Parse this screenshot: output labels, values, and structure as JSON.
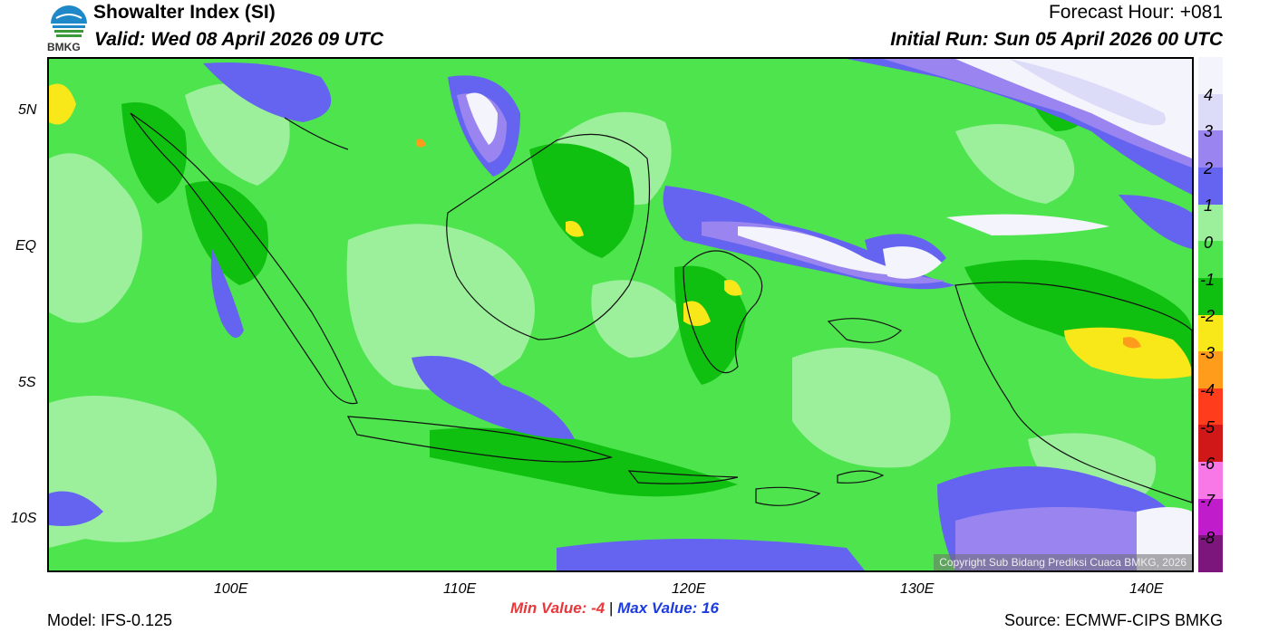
{
  "header": {
    "title": "Showalter Index (SI)",
    "valid": "Valid: Wed 08 April 2026 09 UTC",
    "forecast_hour": "Forecast Hour: +081",
    "initial_run": "Initial Run: Sun 05 April 2026 00 UTC",
    "logo_text": "BMKG"
  },
  "footer": {
    "model": "Model: IFS-0.125",
    "source": "Source: ECMWF-CIPS BMKG",
    "min_value": "Min Value:  -4",
    "separator": "|",
    "max_value": "Max Value:  16",
    "copyright": "Copyright Sub Bidang Prediksi Cuaca BMKG, 2026"
  },
  "axes": {
    "lat_labels": [
      "5N",
      "EQ",
      "5S",
      "10S"
    ],
    "lon_labels": [
      "100E",
      "110E",
      "120E",
      "130E",
      "140E"
    ]
  },
  "legend": {
    "labels": [
      "4",
      "3",
      "2",
      "1",
      "0",
      "-1",
      "-2",
      "-3",
      "-4",
      "-5",
      "-6",
      "-7",
      "-8"
    ],
    "colors": [
      "#f4f4fc",
      "#dcdcf8",
      "#9a84f0",
      "#6464f0",
      "#9cf09c",
      "#4ee44e",
      "#10c010",
      "#f8e81a",
      "#ff9c1c",
      "#ff3c1c",
      "#d01818",
      "#f878e8",
      "#c01ccc",
      "#7c167c"
    ]
  },
  "colors": {
    "min_text": "#e8383c",
    "max_text": "#1c3ce0",
    "land_outline": "#111111"
  }
}
